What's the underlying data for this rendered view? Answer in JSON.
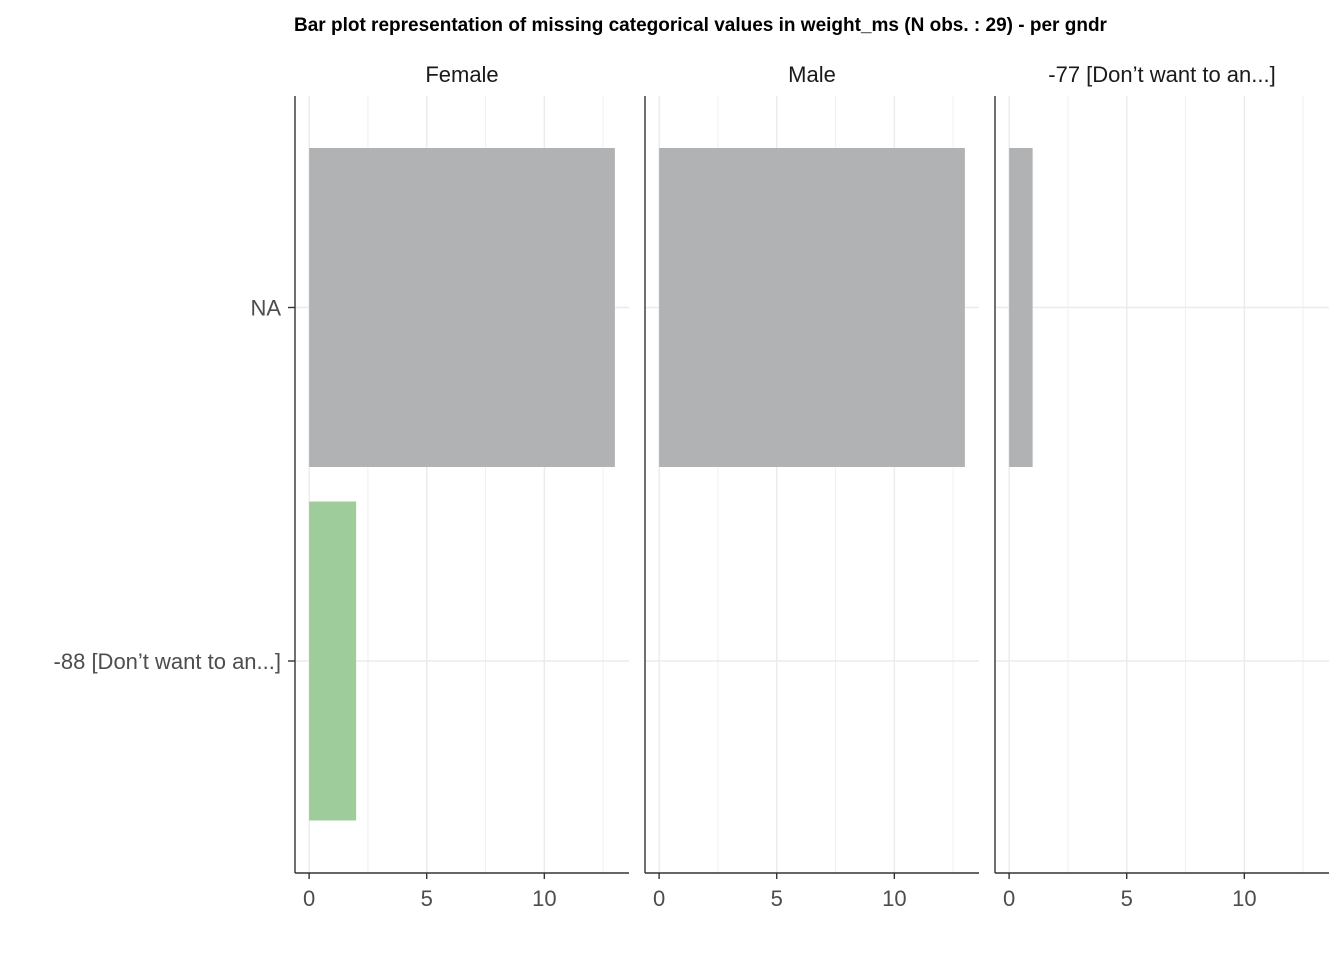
{
  "chart_data": {
    "type": "bar",
    "orientation": "horizontal",
    "title": "Bar plot representation of missing categorical values in weight_ms (N obs. : 29) - per gndr",
    "facet_var": "gndr",
    "categories": [
      "NA",
      "-88 [Don’t want to an...]"
    ],
    "facets": [
      {
        "label": "Female",
        "values": [
          13,
          2
        ]
      },
      {
        "label": "Male",
        "values": [
          13,
          0
        ]
      },
      {
        "label": "-77 [Don’t want to an...]",
        "values": [
          1,
          0
        ]
      }
    ],
    "category_colors": {
      "NA": "#b1b2b4",
      "-88 [Don’t want to an...]": "#9ecd9b"
    },
    "xticks": [
      0,
      5,
      10
    ],
    "xlim": [
      -0.6,
      13.6
    ],
    "xlabel": "",
    "ylabel": "",
    "grid": true,
    "legend": "none"
  }
}
